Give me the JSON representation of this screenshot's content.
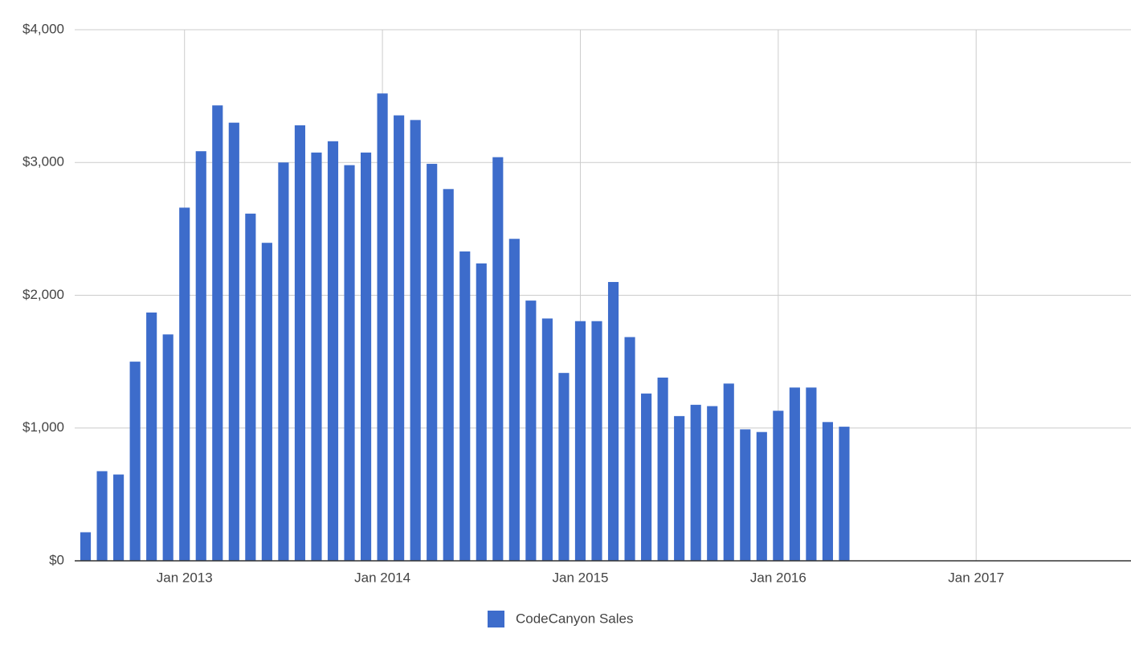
{
  "chart_data": {
    "type": "bar",
    "x": [
      "2012-07",
      "2012-08",
      "2012-09",
      "2012-10",
      "2012-11",
      "2012-12",
      "2013-01",
      "2013-02",
      "2013-03",
      "2013-04",
      "2013-05",
      "2013-06",
      "2013-07",
      "2013-08",
      "2013-09",
      "2013-10",
      "2013-11",
      "2013-12",
      "2014-01",
      "2014-02",
      "2014-03",
      "2014-04",
      "2014-05",
      "2014-06",
      "2014-07",
      "2014-08",
      "2014-09",
      "2014-10",
      "2014-11",
      "2014-12",
      "2015-01",
      "2015-02",
      "2015-03",
      "2015-04",
      "2015-05",
      "2015-06",
      "2015-07",
      "2015-08",
      "2015-09",
      "2015-10",
      "2015-11",
      "2015-12",
      "2016-01",
      "2016-02",
      "2016-03",
      "2016-04",
      "2016-05"
    ],
    "series": [
      {
        "name": "CodeCanyon Sales",
        "color": "#3d6ccb",
        "values": [
          215,
          675,
          650,
          1500,
          1870,
          1705,
          2660,
          3085,
          3430,
          3300,
          2615,
          2395,
          3000,
          3280,
          3075,
          3160,
          2980,
          3075,
          3520,
          3355,
          3320,
          2990,
          2800,
          2330,
          2240,
          3040,
          2425,
          1960,
          1825,
          1415,
          1805,
          1805,
          2100,
          1685,
          1260,
          1380,
          1090,
          1175,
          1165,
          1335,
          990,
          970,
          1130,
          1305,
          1305,
          1045,
          1010
        ]
      }
    ],
    "xlim": [
      "2012-06",
      "2017-10"
    ],
    "xticks": [
      {
        "value": "2013-01",
        "label": "Jan 2013"
      },
      {
        "value": "2014-01",
        "label": "Jan 2014"
      },
      {
        "value": "2015-01",
        "label": "Jan 2015"
      },
      {
        "value": "2016-01",
        "label": "Jan 2016"
      },
      {
        "value": "2017-01",
        "label": "Jan 2017"
      }
    ],
    "ylim": [
      0,
      4000
    ],
    "yticks": [
      {
        "value": 0,
        "label": "$0"
      },
      {
        "value": 1000,
        "label": "$1,000"
      },
      {
        "value": 2000,
        "label": "$2,000"
      },
      {
        "value": 3000,
        "label": "$3,000"
      },
      {
        "value": 4000,
        "label": "$4,000"
      }
    ],
    "grid": true,
    "legend": "bottom"
  }
}
